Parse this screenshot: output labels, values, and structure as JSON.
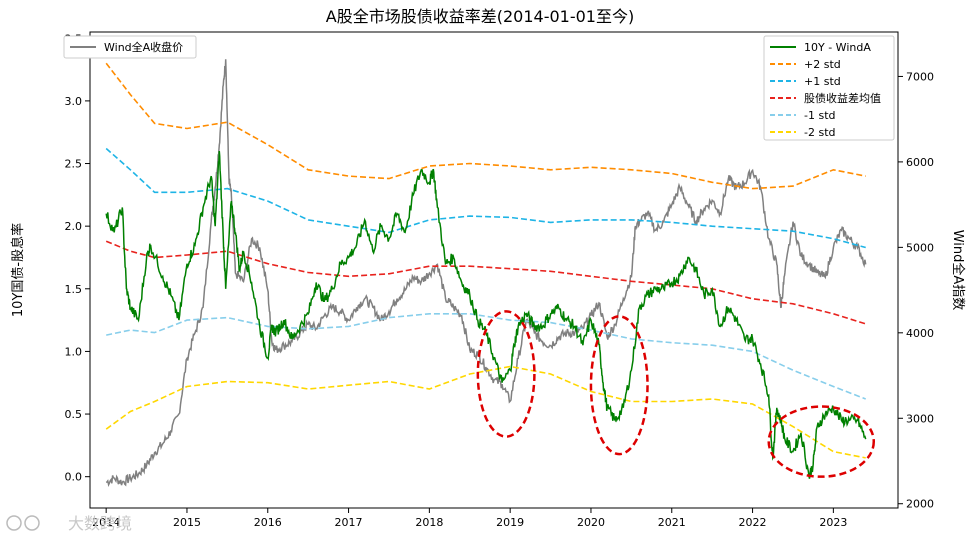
{
  "chart_data": {
    "type": "line",
    "title": "A股全市场股债收益率差(2014-01-01至今)",
    "ylabel_left": "10Y国债-股息率",
    "ylabel_right": "Wind全A指数",
    "ylim_left": [
      -0.25,
      3.55
    ],
    "ylim_right": [
      1950,
      7520
    ],
    "yticks_left": [
      "0.0",
      "0.5",
      "1.0",
      "1.5",
      "2.0",
      "2.5",
      "3.0",
      "3.5"
    ],
    "yticks_right": [
      "2000",
      "3000",
      "4000",
      "5000",
      "6000",
      "7000"
    ],
    "xticks": [
      "2014",
      "2015",
      "2016",
      "2017",
      "2018",
      "2019",
      "2020",
      "2021",
      "2022",
      "2023"
    ],
    "xlim": [
      2013.8,
      2023.8
    ],
    "legend_left": {
      "position": "upper-left",
      "entries": [
        "Wind全A收盘价"
      ]
    },
    "legend_right": {
      "position": "upper-right",
      "entries": [
        "10Y - WindA",
        "+2 std",
        "+1 std",
        "股债收益差均值",
        "-1 std",
        "-2 std"
      ]
    },
    "colors": {
      "spread": "#008000",
      "index": "#808080",
      "plus2": "#FF8C00",
      "plus1": "#1EB4E6",
      "mean": "#E8231E",
      "minus1": "#87CEEB",
      "minus2": "#FFD700",
      "ellipse": "#DD0000"
    },
    "series": [
      {
        "name": "10Y - WindA",
        "axis": "left",
        "x": [
          2014.0,
          2014.1,
          2014.2,
          2014.25,
          2014.3,
          2014.4,
          2014.5,
          2014.55,
          2014.7,
          2014.8,
          2014.9,
          2015.0,
          2015.1,
          2015.2,
          2015.3,
          2015.35,
          2015.4,
          2015.45,
          2015.48,
          2015.55,
          2015.6,
          2015.65,
          2015.7,
          2015.8,
          2015.9,
          2016.0,
          2016.05,
          2016.1,
          2016.2,
          2016.3,
          2016.4,
          2016.5,
          2016.6,
          2016.7,
          2016.8,
          2016.9,
          2017.0,
          2017.1,
          2017.2,
          2017.3,
          2017.4,
          2017.5,
          2017.6,
          2017.7,
          2017.8,
          2017.9,
          2018.0,
          2018.05,
          2018.1,
          2018.2,
          2018.3,
          2018.4,
          2018.5,
          2018.6,
          2018.7,
          2018.8,
          2018.9,
          2019.0,
          2019.05,
          2019.1,
          2019.2,
          2019.3,
          2019.4,
          2019.5,
          2019.6,
          2019.7,
          2019.8,
          2019.9,
          2020.0,
          2020.1,
          2020.15,
          2020.2,
          2020.3,
          2020.4,
          2020.5,
          2020.6,
          2020.7,
          2020.8,
          2020.9,
          2021.0,
          2021.1,
          2021.2,
          2021.3,
          2021.4,
          2021.5,
          2021.6,
          2021.7,
          2021.8,
          2021.9,
          2022.0,
          2022.1,
          2022.2,
          2022.25,
          2022.3,
          2022.35,
          2022.4,
          2022.5,
          2022.6,
          2022.7,
          2022.75,
          2022.8,
          2022.9,
          2023.0,
          2023.1,
          2023.2,
          2023.3,
          2023.4
        ],
        "y": [
          2.1,
          1.95,
          2.15,
          1.5,
          1.35,
          1.25,
          1.75,
          1.85,
          1.6,
          1.45,
          1.25,
          1.7,
          1.85,
          2.15,
          2.4,
          2.0,
          2.6,
          1.9,
          1.5,
          2.2,
          1.95,
          1.65,
          1.8,
          1.55,
          1.2,
          0.95,
          1.2,
          1.15,
          1.25,
          1.1,
          1.2,
          1.3,
          1.55,
          1.4,
          1.5,
          1.7,
          1.75,
          1.85,
          2.05,
          1.8,
          2.0,
          1.9,
          2.1,
          1.95,
          2.25,
          2.45,
          2.35,
          2.45,
          2.15,
          1.7,
          1.75,
          1.55,
          1.45,
          1.25,
          1.15,
          0.95,
          0.75,
          0.85,
          1.05,
          1.2,
          1.3,
          1.2,
          1.2,
          1.3,
          1.35,
          1.25,
          1.2,
          1.05,
          1.25,
          1.05,
          0.75,
          0.55,
          0.45,
          0.55,
          0.85,
          1.35,
          1.45,
          1.5,
          1.5,
          1.55,
          1.6,
          1.75,
          1.65,
          1.45,
          1.5,
          1.2,
          1.35,
          1.25,
          1.1,
          1.1,
          0.9,
          0.65,
          0.15,
          0.55,
          0.45,
          0.3,
          0.2,
          0.35,
          0.0,
          0.1,
          0.4,
          0.5,
          0.55,
          0.45,
          0.45,
          0.45,
          0.3
        ]
      },
      {
        "name": "Wind全A收盘价",
        "axis": "right",
        "x": [
          2014.0,
          2014.1,
          2014.2,
          2014.3,
          2014.4,
          2014.5,
          2014.6,
          2014.7,
          2014.8,
          2014.9,
          2015.0,
          2015.1,
          2015.2,
          2015.3,
          2015.35,
          2015.4,
          2015.45,
          2015.48,
          2015.52,
          2015.55,
          2015.6,
          2015.7,
          2015.8,
          2015.9,
          2016.0,
          2016.05,
          2016.1,
          2016.2,
          2016.3,
          2016.4,
          2016.5,
          2016.6,
          2016.7,
          2016.8,
          2016.9,
          2017.0,
          2017.1,
          2017.2,
          2017.3,
          2017.4,
          2017.5,
          2017.6,
          2017.7,
          2017.8,
          2017.9,
          2018.0,
          2018.1,
          2018.2,
          2018.3,
          2018.4,
          2018.5,
          2018.6,
          2018.7,
          2018.8,
          2018.9,
          2019.0,
          2019.1,
          2019.2,
          2019.3,
          2019.4,
          2019.5,
          2019.6,
          2019.7,
          2019.8,
          2019.9,
          2020.0,
          2020.1,
          2020.2,
          2020.3,
          2020.4,
          2020.5,
          2020.55,
          2020.6,
          2020.7,
          2020.8,
          2020.9,
          2021.0,
          2021.1,
          2021.2,
          2021.3,
          2021.4,
          2021.5,
          2021.6,
          2021.7,
          2021.8,
          2021.9,
          2022.0,
          2022.1,
          2022.2,
          2022.3,
          2022.35,
          2022.4,
          2022.5,
          2022.6,
          2022.7,
          2022.8,
          2022.9,
          2023.0,
          2023.1,
          2023.2,
          2023.3,
          2023.4
        ],
        "y": [
          2250,
          2300,
          2250,
          2300,
          2350,
          2450,
          2600,
          2700,
          2850,
          3050,
          3700,
          4000,
          4300,
          5300,
          5700,
          6200,
          6900,
          7200,
          5800,
          5600,
          4700,
          4600,
          5100,
          5000,
          4500,
          3900,
          3800,
          3850,
          3900,
          4000,
          4100,
          4050,
          4200,
          4300,
          4250,
          4150,
          4300,
          4400,
          4300,
          4150,
          4250,
          4400,
          4500,
          4650,
          4600,
          4700,
          4800,
          4400,
          4300,
          4200,
          3800,
          3750,
          3600,
          3450,
          3400,
          3200,
          3700,
          4150,
          4000,
          3900,
          3850,
          3950,
          4000,
          4000,
          4050,
          4200,
          4350,
          3950,
          4100,
          4400,
          4650,
          5250,
          5300,
          5400,
          5200,
          5300,
          5500,
          5700,
          5500,
          5300,
          5450,
          5550,
          5400,
          5800,
          5700,
          5750,
          5900,
          5700,
          5100,
          4800,
          4300,
          4700,
          5300,
          4900,
          4800,
          4700,
          4650,
          5000,
          5200,
          5100,
          5000,
          4800
        ]
      },
      {
        "name": "+2 std",
        "axis": "left",
        "x": [
          2014.0,
          2014.3,
          2014.6,
          2015.0,
          2015.5,
          2016.0,
          2016.5,
          2017.0,
          2017.5,
          2018.0,
          2018.5,
          2019.0,
          2019.5,
          2020.0,
          2020.5,
          2021.0,
          2021.5,
          2022.0,
          2022.5,
          2023.0,
          2023.4
        ],
        "y": [
          3.3,
          3.05,
          2.82,
          2.78,
          2.83,
          2.65,
          2.45,
          2.4,
          2.38,
          2.48,
          2.5,
          2.48,
          2.45,
          2.47,
          2.45,
          2.42,
          2.35,
          2.3,
          2.32,
          2.45,
          2.4
        ]
      },
      {
        "name": "+1 std",
        "axis": "left",
        "x": [
          2014.0,
          2014.3,
          2014.6,
          2015.0,
          2015.5,
          2016.0,
          2016.5,
          2017.0,
          2017.5,
          2018.0,
          2018.5,
          2019.0,
          2019.5,
          2020.0,
          2020.5,
          2021.0,
          2021.5,
          2022.0,
          2022.5,
          2023.0,
          2023.4
        ],
        "y": [
          2.62,
          2.45,
          2.27,
          2.27,
          2.3,
          2.2,
          2.05,
          2.0,
          1.95,
          2.05,
          2.08,
          2.07,
          2.03,
          2.05,
          2.05,
          2.03,
          2.0,
          1.98,
          1.96,
          1.9,
          1.83
        ]
      },
      {
        "name": "股债收益差均值",
        "axis": "left",
        "x": [
          2014.0,
          2014.3,
          2014.6,
          2015.0,
          2015.5,
          2016.0,
          2016.5,
          2017.0,
          2017.5,
          2018.0,
          2018.5,
          2019.0,
          2019.5,
          2020.0,
          2020.5,
          2021.0,
          2021.5,
          2022.0,
          2022.5,
          2023.0,
          2023.4
        ],
        "y": [
          1.88,
          1.8,
          1.75,
          1.77,
          1.8,
          1.7,
          1.63,
          1.6,
          1.62,
          1.68,
          1.68,
          1.66,
          1.64,
          1.6,
          1.56,
          1.53,
          1.5,
          1.42,
          1.38,
          1.3,
          1.22
        ]
      },
      {
        "name": "-1 std",
        "axis": "left",
        "x": [
          2014.0,
          2014.3,
          2014.6,
          2015.0,
          2015.5,
          2016.0,
          2016.5,
          2017.0,
          2017.5,
          2018.0,
          2018.5,
          2019.0,
          2019.5,
          2020.0,
          2020.5,
          2021.0,
          2021.5,
          2022.0,
          2022.5,
          2023.0,
          2023.4
        ],
        "y": [
          1.13,
          1.17,
          1.15,
          1.25,
          1.27,
          1.2,
          1.18,
          1.2,
          1.27,
          1.3,
          1.3,
          1.25,
          1.23,
          1.17,
          1.1,
          1.07,
          1.05,
          1.0,
          0.85,
          0.72,
          0.62
        ]
      },
      {
        "name": "-2 std",
        "axis": "left",
        "x": [
          2014.0,
          2014.3,
          2014.6,
          2015.0,
          2015.5,
          2016.0,
          2016.5,
          2017.0,
          2017.5,
          2018.0,
          2018.5,
          2019.0,
          2019.5,
          2020.0,
          2020.5,
          2021.0,
          2021.5,
          2022.0,
          2022.5,
          2023.0,
          2023.4
        ],
        "y": [
          0.38,
          0.52,
          0.6,
          0.72,
          0.76,
          0.75,
          0.7,
          0.73,
          0.76,
          0.7,
          0.82,
          0.88,
          0.82,
          0.68,
          0.6,
          0.6,
          0.62,
          0.58,
          0.4,
          0.2,
          0.15
        ]
      }
    ],
    "annotations": [
      {
        "type": "dashed-ellipse",
        "cx": 2018.95,
        "cy": 0.82,
        "rx": 0.35,
        "ry": 0.5
      },
      {
        "type": "dashed-ellipse",
        "cx": 2020.35,
        "cy": 0.73,
        "rx": 0.35,
        "ry": 0.55
      },
      {
        "type": "dashed-ellipse",
        "cx": 2022.85,
        "cy": 0.28,
        "rx": 0.65,
        "ry": 0.28
      }
    ]
  },
  "watermark": "大数跨境"
}
